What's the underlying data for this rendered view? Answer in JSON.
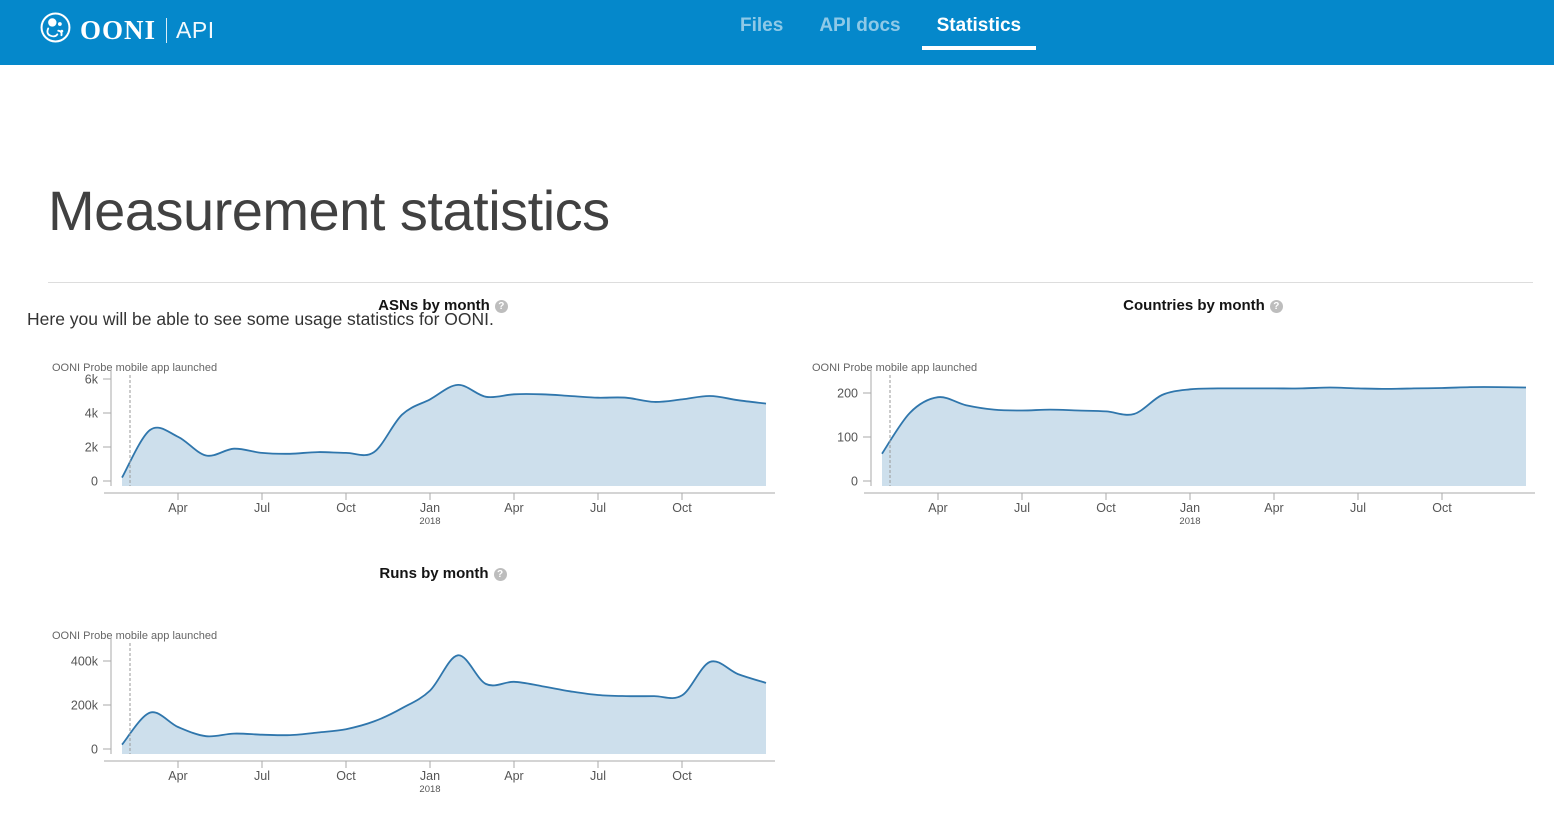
{
  "header": {
    "logo": {
      "brand": "OONI",
      "sub": "API"
    },
    "nav": [
      {
        "label": "Files",
        "active": false
      },
      {
        "label": "API docs",
        "active": false
      },
      {
        "label": "Statistics",
        "active": true
      }
    ],
    "background_color": "#0588cb"
  },
  "page": {
    "title": "Measurement statistics",
    "intro": "Here you will be able to see some usage statistics for OONI."
  },
  "ui": {
    "help_glyph": "?"
  },
  "colors": {
    "header_bg": "#0588cb",
    "active_tab_underline": "#ffffff",
    "chart_line": "#2f76ac",
    "chart_fill": "#cddfec",
    "axis": "#aaaaaa",
    "axis_text": "#555555",
    "annotation": "#666666"
  },
  "chart_data": [
    {
      "type": "area",
      "title": "ASNs by month",
      "annotation": {
        "label": "OONI Probe mobile app launched",
        "month": "2017-02"
      },
      "months": [
        "2017-02",
        "2017-03",
        "2017-04",
        "2017-05",
        "2017-06",
        "2017-07",
        "2017-08",
        "2017-09",
        "2017-10",
        "2017-11",
        "2017-12",
        "2018-01",
        "2018-02",
        "2018-03",
        "2018-04",
        "2018-05",
        "2018-06",
        "2018-07",
        "2018-08",
        "2018-09",
        "2018-10",
        "2018-11",
        "2018-12",
        "2019-01"
      ],
      "values": [
        200,
        3000,
        2600,
        1500,
        1900,
        1650,
        1600,
        1700,
        1650,
        1700,
        3900,
        4800,
        5650,
        4950,
        5100,
        5100,
        5000,
        4900,
        4900,
        4650,
        4800,
        5000,
        4750,
        4550
      ],
      "ylim": [
        0,
        6350
      ],
      "y_ticks": [
        {
          "value": 0,
          "label": "0"
        },
        {
          "value": 2000,
          "label": "2k"
        },
        {
          "value": 4000,
          "label": "4k"
        },
        {
          "value": 6000,
          "label": "6k"
        }
      ],
      "x_ticks": [
        {
          "month_index": 2,
          "label": "Apr"
        },
        {
          "month_index": 5,
          "label": "Jul"
        },
        {
          "month_index": 8,
          "label": "Oct"
        },
        {
          "month_index": 11,
          "label": "Jan",
          "sublabel": "2018"
        },
        {
          "month_index": 14,
          "label": "Apr"
        },
        {
          "month_index": 17,
          "label": "Jul"
        },
        {
          "month_index": 20,
          "label": "Oct"
        }
      ],
      "line_color": "#2f76ac",
      "fill_color": "#cddfec",
      "grid": false,
      "legend": false
    },
    {
      "type": "area",
      "title": "Countries by month",
      "annotation": {
        "label": "OONI Probe mobile app launched",
        "month": "2017-02"
      },
      "months": [
        "2017-02",
        "2017-03",
        "2017-04",
        "2017-05",
        "2017-06",
        "2017-07",
        "2017-08",
        "2017-09",
        "2017-10",
        "2017-11",
        "2017-12",
        "2018-01",
        "2018-02",
        "2018-03",
        "2018-04",
        "2018-05",
        "2018-06",
        "2018-07",
        "2018-08",
        "2018-09",
        "2018-10",
        "2018-11",
        "2018-12",
        "2019-01"
      ],
      "values": [
        62,
        155,
        190,
        172,
        162,
        160,
        162,
        160,
        158,
        152,
        195,
        208,
        210,
        210,
        210,
        210,
        212,
        210,
        209,
        210,
        211,
        213,
        213,
        212
      ],
      "ylim": [
        0,
        245
      ],
      "y_ticks": [
        {
          "value": 0,
          "label": "0"
        },
        {
          "value": 100,
          "label": "100"
        },
        {
          "value": 200,
          "label": "200"
        }
      ],
      "x_ticks": [
        {
          "month_index": 2,
          "label": "Apr"
        },
        {
          "month_index": 5,
          "label": "Jul"
        },
        {
          "month_index": 8,
          "label": "Oct"
        },
        {
          "month_index": 11,
          "label": "Jan",
          "sublabel": "2018"
        },
        {
          "month_index": 14,
          "label": "Apr"
        },
        {
          "month_index": 17,
          "label": "Jul"
        },
        {
          "month_index": 20,
          "label": "Oct"
        }
      ],
      "line_color": "#2f76ac",
      "fill_color": "#cddfec",
      "grid": false,
      "legend": false
    },
    {
      "type": "area",
      "title": "Runs by month",
      "annotation": {
        "label": "OONI Probe mobile app launched",
        "month": "2017-02"
      },
      "months": [
        "2017-02",
        "2017-03",
        "2017-04",
        "2017-05",
        "2017-06",
        "2017-07",
        "2017-08",
        "2017-09",
        "2017-10",
        "2017-11",
        "2017-12",
        "2018-01",
        "2018-02",
        "2018-03",
        "2018-04",
        "2018-05",
        "2018-06",
        "2018-07",
        "2018-08",
        "2018-09",
        "2018-10",
        "2018-11",
        "2018-12",
        "2019-01"
      ],
      "values": [
        20000,
        165000,
        100000,
        58000,
        70000,
        65000,
        63000,
        75000,
        90000,
        125000,
        185000,
        265000,
        425000,
        295000,
        305000,
        285000,
        262000,
        245000,
        240000,
        240000,
        243000,
        395000,
        340000,
        300000
      ],
      "ylim": [
        0,
        490000
      ],
      "y_ticks": [
        {
          "value": 0,
          "label": "0"
        },
        {
          "value": 200000,
          "label": "200k"
        },
        {
          "value": 400000,
          "label": "400k"
        }
      ],
      "x_ticks": [
        {
          "month_index": 2,
          "label": "Apr"
        },
        {
          "month_index": 5,
          "label": "Jul"
        },
        {
          "month_index": 8,
          "label": "Oct"
        },
        {
          "month_index": 11,
          "label": "Jan",
          "sublabel": "2018"
        },
        {
          "month_index": 14,
          "label": "Apr"
        },
        {
          "month_index": 17,
          "label": "Jul"
        },
        {
          "month_index": 20,
          "label": "Oct"
        }
      ],
      "line_color": "#2f76ac",
      "fill_color": "#cddfec",
      "grid": false,
      "legend": false
    }
  ]
}
